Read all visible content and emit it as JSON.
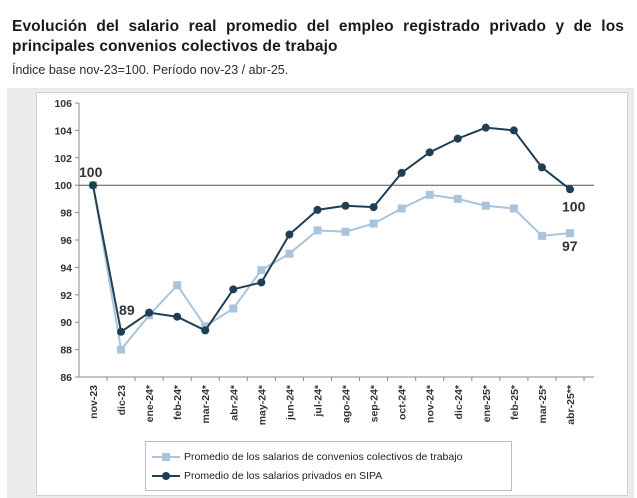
{
  "header": {
    "title": "Evolución del salario real promedio del empleo registrado privado y de los principales convenios colectivos de trabajo",
    "subtitle": "Índice base nov-23=100. Período nov-23 / abr-25."
  },
  "chart_data": {
    "type": "line",
    "title": "Evolución del salario real promedio del empleo registrado privado y de los principales convenios colectivos de trabajo",
    "subtitle": "Índice base nov-23=100. Período nov-23 / abr-25.",
    "categories": [
      "nov-23",
      "dic-23",
      "ene-24*",
      "feb-24*",
      "mar-24*",
      "abr-24*",
      "may-24*",
      "jun-24*",
      "jul-24*",
      "ago-24*",
      "sep-24*",
      "oct-24*",
      "nov-24*",
      "dic-24*",
      "ene-25*",
      "feb-25*",
      "mar-25*",
      "abr-25**"
    ],
    "series": [
      {
        "name": "Promedio de los salarios de convenios colectivos de trabajo",
        "color": "#a9c4dc",
        "marker": "square",
        "values": [
          100,
          88.0,
          90.5,
          92.7,
          89.7,
          91.0,
          93.8,
          95.0,
          96.7,
          96.6,
          97.2,
          98.3,
          99.3,
          99.0,
          98.5,
          98.3,
          96.3,
          96.5
        ]
      },
      {
        "name": "Promedio de los salarios privados en SIPA",
        "color": "#1f3f55",
        "marker": "circle",
        "values": [
          100,
          89.3,
          90.7,
          90.4,
          89.4,
          92.4,
          92.9,
          96.4,
          98.2,
          98.5,
          98.4,
          100.9,
          102.4,
          103.4,
          104.2,
          104.0,
          101.3,
          99.7
        ]
      }
    ],
    "ylim": [
      86,
      106
    ],
    "yticks": [
      "86",
      "88",
      "90",
      "92",
      "94",
      "96",
      "98",
      "100",
      "102",
      "104",
      "106"
    ],
    "reference_line": 100,
    "grid": false,
    "legend": "bottom",
    "annotations": [
      {
        "text": "100",
        "series": 1,
        "index": 0
      },
      {
        "text": "89",
        "series": 1,
        "index": 1
      },
      {
        "text": "100",
        "series": 1,
        "index": 17
      },
      {
        "text": "97",
        "series": 0,
        "index": 17
      }
    ]
  }
}
